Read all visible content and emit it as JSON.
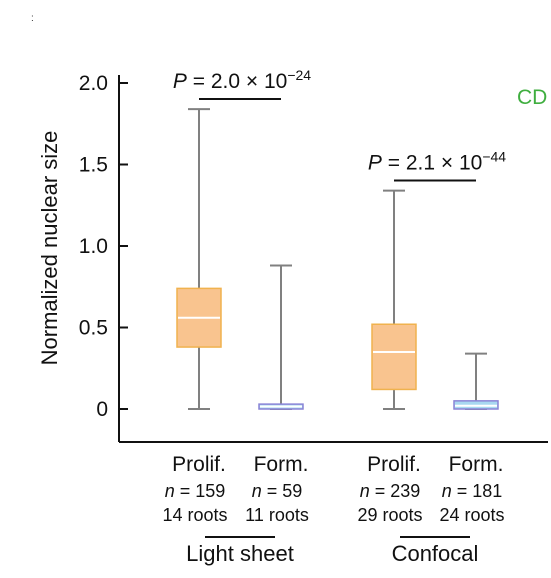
{
  "chart_data": {
    "type": "box",
    "ylabel": "Normalized nuclear size",
    "yticks": [
      {
        "value": 0,
        "label": "0"
      },
      {
        "value": 0.5,
        "label": "0.5"
      },
      {
        "value": 1.0,
        "label": "1.0"
      },
      {
        "value": 1.5,
        "label": "1.5"
      },
      {
        "value": 2.0,
        "label": "2.0"
      }
    ],
    "ylim": [
      -0.2,
      2.05
    ],
    "boxes": [
      {
        "category": "Prolif.",
        "n_prefix": "n",
        "n_text": " = 159",
        "roots": "14 roots",
        "group": "Light sheet",
        "min": 0,
        "q1": 0.38,
        "median": 0.56,
        "q3": 0.74,
        "max": 1.84,
        "fill": "#f9c48f",
        "stroke": "#f0b24e",
        "median_color": "#ffffff"
      },
      {
        "category": "Form.",
        "n_prefix": "n",
        "n_text": " = 59",
        "roots": "11 roots",
        "group": "Light sheet",
        "min": 0,
        "q1": 0.0,
        "median": 0.015,
        "q3": 0.03,
        "max": 0.88,
        "fill": "#a8d8f0",
        "stroke": "#8a84d6",
        "median_color": "#ffffff"
      },
      {
        "category": "Prolif.",
        "n_prefix": "n",
        "n_text": " = 239",
        "roots": "29 roots",
        "group": "Confocal",
        "min": 0,
        "q1": 0.12,
        "median": 0.35,
        "q3": 0.52,
        "max": 1.34,
        "fill": "#f9c48f",
        "stroke": "#f0b24e",
        "median_color": "#ffffff"
      },
      {
        "category": "Form.",
        "n_prefix": "n",
        "n_text": " = 181",
        "roots": "24 roots",
        "group": "Confocal",
        "min": 0,
        "q1": 0.0,
        "median": 0.02,
        "q3": 0.05,
        "max": 0.34,
        "fill": "#a8d8f0",
        "stroke": "#8a84d6",
        "median_color": "#ffffff"
      }
    ],
    "groups": [
      "Light sheet",
      "Confocal"
    ],
    "annotations": [
      {
        "prefix": "P",
        "mantissa": " = 2.0 × 10",
        "exponent": "−24",
        "between": [
          0,
          1
        ],
        "y": 2.0
      },
      {
        "prefix": "P",
        "mantissa": " = 2.1 × 10",
        "exponent": "−44",
        "between": [
          2,
          3
        ],
        "y": 1.5
      }
    ],
    "whisker_color": "#808080"
  },
  "corner_label": "CD",
  "corner_label_color": "#3fae3f",
  "corner_mark": ":"
}
